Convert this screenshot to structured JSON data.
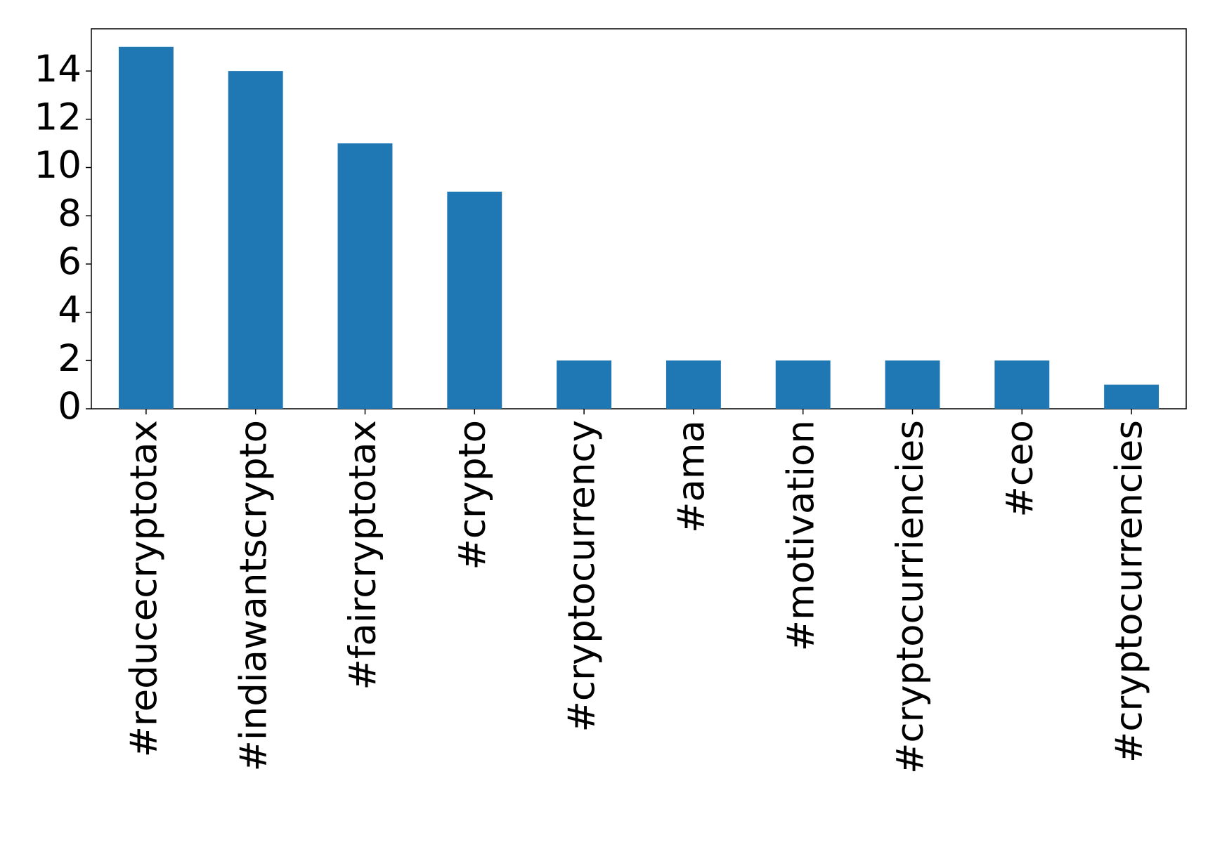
{
  "chart_data": {
    "type": "bar",
    "categories": [
      "#reducecryptotax",
      "#indiawantscrypto",
      "#faircryptotax",
      "#crypto",
      "#cryptocurrency",
      "#ama",
      "#motivation",
      "#cryptocurriencies",
      "#ceo",
      "#cryptocurrencies"
    ],
    "values": [
      15,
      14,
      11,
      9,
      2,
      2,
      2,
      2,
      2,
      1
    ],
    "color": "#1f77b4",
    "ylim": [
      0,
      15.75
    ],
    "yticks": [
      0,
      2,
      4,
      6,
      8,
      10,
      12,
      14
    ],
    "grid": false
  }
}
